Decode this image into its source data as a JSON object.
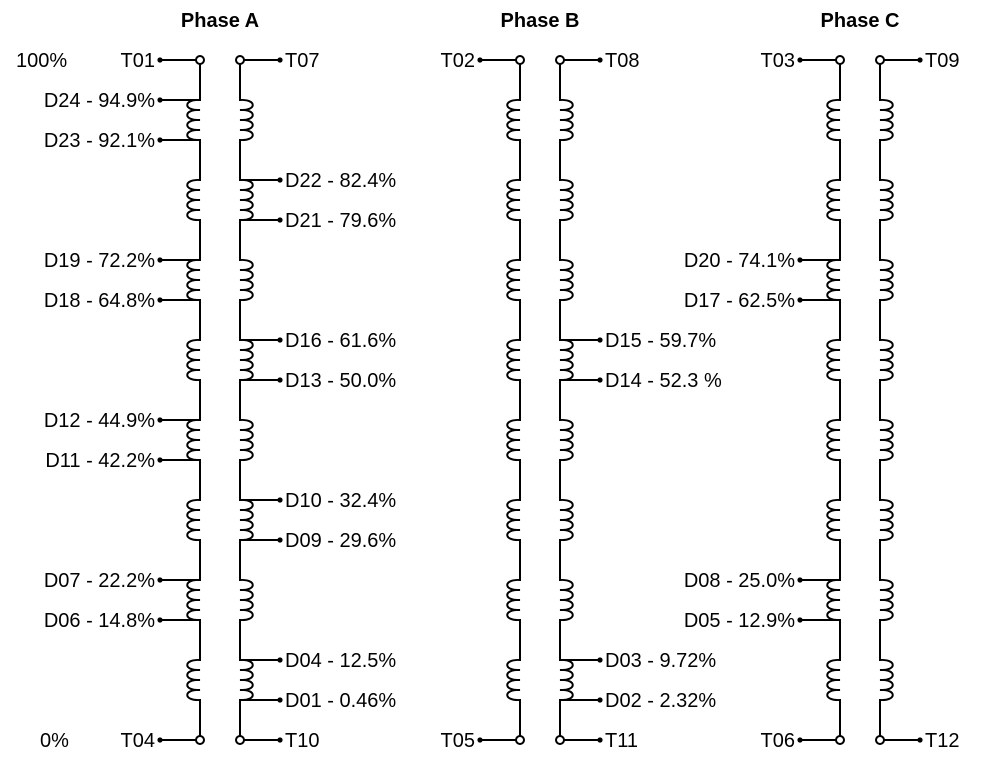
{
  "scale": {
    "top": "100%",
    "bottom": "0%"
  },
  "phases": [
    {
      "title": "Phase A",
      "left": {
        "terminals": {
          "top": "T01",
          "bottom": "T04"
        },
        "taps": [
          "D24 - 94.9%",
          "D23 - 92.1%",
          "D19 - 72.2%",
          "D18 - 64.8%",
          "D12 - 44.9%",
          "D11 - 42.2%",
          "D07 - 22.2%",
          "D06 - 14.8%"
        ]
      },
      "right": {
        "terminals": {
          "top": "T07",
          "bottom": "T10"
        },
        "taps": [
          "D22 - 82.4%",
          "D21 - 79.6%",
          "D16 - 61.6%",
          "D13 - 50.0%",
          "D10 - 32.4%",
          "D09 - 29.6%",
          "D04 - 12.5%",
          "D01 - 0.46%"
        ]
      }
    },
    {
      "title": "Phase B",
      "left": {
        "terminals": {
          "top": "T02",
          "bottom": "T05"
        },
        "taps": []
      },
      "right": {
        "terminals": {
          "top": "T08",
          "bottom": "T11"
        },
        "taps": [
          "D15 - 59.7%",
          "D14 - 52.3 %",
          "D03 - 9.72%",
          "D02 - 2.32%"
        ]
      }
    },
    {
      "title": "Phase C",
      "left": {
        "terminals": {
          "top": "T03",
          "bottom": "T06"
        },
        "taps": [
          "D20 - 74.1%",
          "D17 - 62.5%",
          "D08 - 25.0%",
          "D05 - 12.9%"
        ]
      },
      "right": {
        "terminals": {
          "top": "T09",
          "bottom": "T12"
        },
        "taps": []
      }
    }
  ]
}
